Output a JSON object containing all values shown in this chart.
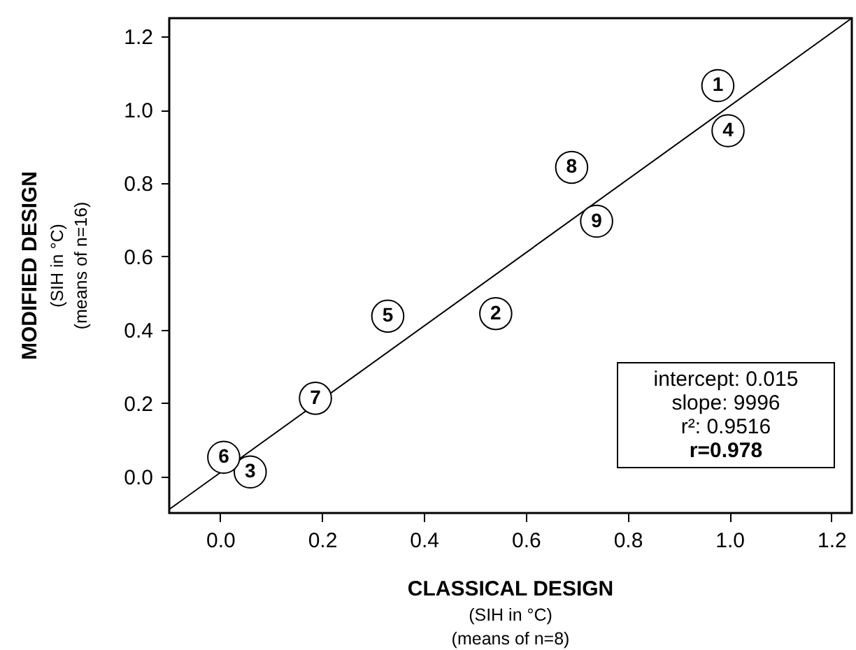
{
  "chart_data": {
    "type": "scatter",
    "xlabel": "CLASSICAL DESIGN\n(SIH in °C)\n(means of n=8)",
    "ylabel": "MODIFIED DESIGN\n(SIH in °C)\n(means of n=16)",
    "xlim": [
      -0.1,
      1.24
    ],
    "ylim": [
      -0.1,
      1.25
    ],
    "xticks": [
      {
        "value": 0,
        "label": "0.0"
      },
      {
        "value": 0.2,
        "label": "0.2"
      },
      {
        "value": 0.4,
        "label": "0.4"
      },
      {
        "value": 0.6,
        "label": "0.6"
      },
      {
        "value": 0.8,
        "label": "0.8"
      },
      {
        "value": 1,
        "label": "1.0"
      },
      {
        "value": 1.2,
        "label": "1.2"
      }
    ],
    "yticks": [
      {
        "value": 0,
        "label": "0.0"
      },
      {
        "value": 0.2,
        "label": "0.2"
      },
      {
        "value": 0.4,
        "label": "0.4"
      },
      {
        "value": 0.6,
        "label": "0.6"
      },
      {
        "value": 0.8,
        "label": "0.8"
      },
      {
        "value": 1,
        "label": "1.0"
      },
      {
        "value": 1.2,
        "label": "1.2"
      }
    ],
    "grid": false,
    "series": [
      {
        "color": "#000000",
        "marker": "circle",
        "x": [
          0.977,
          0.541,
          0.059,
          0.997,
          0.329,
          0.007,
          0.187,
          0.69,
          0.739
        ],
        "values": [
          1.066,
          0.444,
          0.012,
          0.943,
          0.437,
          0.052,
          0.213,
          0.843,
          0.696
        ]
      },
      {
        "type": "line",
        "color": "#000000",
        "x": [
          -0.1,
          1.24
        ],
        "values": [
          -0.09,
          1.25
        ]
      }
    ],
    "annotations": [
      {
        "text": "1",
        "x": 0.977,
        "y": 1.066
      },
      {
        "text": "2",
        "x": 0.541,
        "y": 0.444
      },
      {
        "text": "3",
        "x": 0.059,
        "y": 0.012
      },
      {
        "text": "4",
        "x": 0.997,
        "y": 0.943
      },
      {
        "text": "5",
        "x": 0.329,
        "y": 0.437
      },
      {
        "text": "6",
        "x": 0.007,
        "y": 0.052
      },
      {
        "text": "7",
        "x": 0.187,
        "y": 0.213
      },
      {
        "text": "8",
        "x": 0.69,
        "y": 0.843
      },
      {
        "text": "9",
        "x": 0.739,
        "y": 0.696
      },
      "intercept: 0.015",
      "slope: 9996",
      "r²: 0.9516",
      "r=0.978"
    ]
  }
}
